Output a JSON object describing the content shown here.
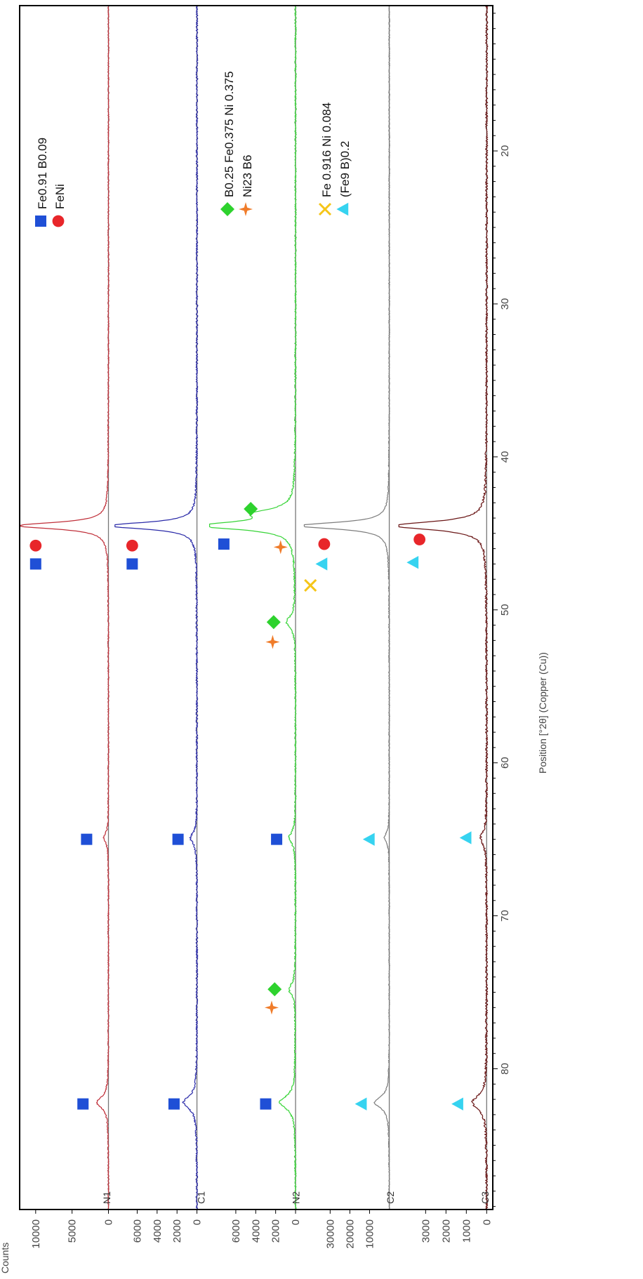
{
  "chart_data": {
    "type": "line",
    "orientation": "rotated-90-clockwise",
    "xlabel": "Position [°2θ] (Copper (Cu))",
    "ylabel": "Counts",
    "xlim": [
      10.5,
      89.2
    ],
    "x_ticks": [
      20,
      30,
      40,
      50,
      60,
      70,
      80
    ],
    "grid": false,
    "panels": [
      {
        "name": "N1",
        "color": "#c0303a",
        "ylim": [
          -800,
          12200
        ],
        "y_ticks": [
          0,
          5000,
          10000
        ],
        "y_tick_labels": [
          "0",
          "5000",
          "10000"
        ],
        "peaks": [
          {
            "x": 44.5,
            "height": 12500,
            "width": 0.26
          },
          {
            "x": 64.9,
            "height": 650,
            "width": 0.4
          },
          {
            "x": 82.2,
            "height": 1600,
            "width": 0.45
          }
        ],
        "noise": 80,
        "markers": [
          {
            "phase": "Fe0.91 B0.09",
            "x": 47.0,
            "y": 10000
          },
          {
            "phase": "FeNi",
            "x": 45.8,
            "y": 10000
          },
          {
            "phase": "Fe0.91 B0.09",
            "x": 65.0,
            "y": 3000
          },
          {
            "phase": "Fe0.91 B0.09",
            "x": 82.3,
            "y": 3500
          }
        ]
      },
      {
        "name": "C1",
        "color": "#2a2aa8",
        "ylim": [
          -1200,
          8300
        ],
        "y_ticks": [
          0,
          2000,
          4000,
          6000
        ],
        "y_tick_labels": [
          "0",
          "2000",
          "4000",
          "6000"
        ],
        "peaks": [
          {
            "x": 44.5,
            "height": 9000,
            "width": 0.26
          },
          {
            "x": 64.9,
            "height": 650,
            "width": 0.45
          },
          {
            "x": 82.2,
            "height": 1350,
            "width": 0.5
          }
        ],
        "noise": 90,
        "markers": [
          {
            "phase": "Fe0.91 B0.09",
            "x": 47.0,
            "y": 6500
          },
          {
            "phase": "FeNi",
            "x": 45.8,
            "y": 6500
          },
          {
            "phase": "Fe0.91 B0.09",
            "x": 65.0,
            "y": 1900
          },
          {
            "phase": "Fe0.91 B0.09",
            "x": 82.3,
            "y": 2300
          }
        ]
      },
      {
        "name": "N2",
        "color": "#37d437",
        "ylim": [
          -800,
          8700
        ],
        "y_ticks": [
          0,
          2000,
          4000,
          6000
        ],
        "y_tick_labels": [
          "0",
          "2000",
          "4000",
          "6000"
        ],
        "peaks": [
          {
            "x": 43.7,
            "height": 3400,
            "width": 0.35
          },
          {
            "x": 44.5,
            "height": 9200,
            "width": 0.3
          },
          {
            "x": 50.8,
            "height": 900,
            "width": 0.45
          },
          {
            "x": 64.9,
            "height": 650,
            "width": 0.45
          },
          {
            "x": 74.8,
            "height": 650,
            "width": 0.45
          },
          {
            "x": 82.2,
            "height": 1600,
            "width": 0.5
          }
        ],
        "noise": 80,
        "markers": [
          {
            "phase": "Fe0.91 B0.09",
            "x": 45.7,
            "y": 7200
          },
          {
            "phase": "B0.25 Fe0.375 Ni 0.375",
            "x": 43.4,
            "y": 4500
          },
          {
            "phase": "Ni23 B6",
            "x": 45.9,
            "y": 1500
          },
          {
            "phase": "B0.25 Fe0.375 Ni 0.375",
            "x": 50.8,
            "y": 2200
          },
          {
            "phase": "Ni23 B6",
            "x": 52.1,
            "y": 2300
          },
          {
            "phase": "Fe0.91 B0.09",
            "x": 65.0,
            "y": 1900
          },
          {
            "phase": "B0.25 Fe0.375 Ni 0.375",
            "x": 74.8,
            "y": 2100
          },
          {
            "phase": "Ni23 B6",
            "x": 76.0,
            "y": 2400
          },
          {
            "phase": "Fe0.91 B0.09",
            "x": 82.3,
            "y": 3000
          }
        ]
      },
      {
        "name": "C2",
        "color": "#7d7d7d",
        "ylim": [
          -4500,
          43500
        ],
        "y_ticks": [
          10000,
          20000,
          30000
        ],
        "y_tick_labels": [
          "10000",
          "20000",
          "30000"
        ],
        "peaks": [
          {
            "x": 44.5,
            "height": 46000,
            "width": 0.26
          },
          {
            "x": 64.9,
            "height": 2500,
            "width": 0.4
          },
          {
            "x": 82.2,
            "height": 7500,
            "width": 0.45
          }
        ],
        "noise": 250,
        "markers": [
          {
            "phase": "FeNi",
            "x": 45.7,
            "y": 33000
          },
          {
            "phase": "(Fe9 B)0.2",
            "x": 47.0,
            "y": 34000
          },
          {
            "phase": "Fe 0.916 Ni 0.084",
            "x": 48.4,
            "y": 40000
          },
          {
            "phase": "(Fe9 B)0.2",
            "x": 65.0,
            "y": 10000
          },
          {
            "phase": "(Fe9 B)0.2",
            "x": 82.3,
            "y": 14000
          }
        ]
      },
      {
        "name": "C3",
        "color": "#6a1616",
        "ylim": [
          -300,
          4350
        ],
        "y_ticks": [
          0,
          1000,
          2000,
          3000
        ],
        "y_tick_labels": [
          "0",
          "1000",
          "2000",
          "3000"
        ],
        "peaks": [
          {
            "x": 44.5,
            "height": 4600,
            "width": 0.32
          },
          {
            "x": 64.9,
            "height": 300,
            "width": 0.5
          },
          {
            "x": 82.2,
            "height": 700,
            "width": 0.55
          }
        ],
        "noise": 55,
        "markers": [
          {
            "phase": "FeNi",
            "x": 45.4,
            "y": 3300
          },
          {
            "phase": "(Fe9 B)0.2",
            "x": 46.9,
            "y": 3600
          },
          {
            "phase": "(Fe9 B)0.2",
            "x": 64.9,
            "y": 1000
          },
          {
            "phase": "(Fe9 B)0.2",
            "x": 82.3,
            "y": 1400
          }
        ]
      }
    ],
    "legends": [
      {
        "items": [
          {
            "label": "Fe0.91 B0.09",
            "symbol": "square",
            "color": "#1f4fd6"
          },
          {
            "label": "FeNi",
            "symbol": "circle",
            "color": "#e8262a"
          }
        ]
      },
      {
        "items": [
          {
            "label": "B0.25 Fe0.375 Ni 0.375",
            "symbol": "diamond",
            "color": "#2ed22e"
          },
          {
            "label": "Ni23 B6",
            "symbol": "star",
            "color": "#f07c2a"
          }
        ]
      },
      {
        "items": [
          {
            "label": "Fe 0.916 Ni 0.084",
            "symbol": "cross",
            "color": "#f5c518"
          },
          {
            "label": "(Fe9 B)0.2",
            "symbol": "triangle",
            "color": "#36d3f0"
          }
        ]
      }
    ],
    "phase_styles": {
      "Fe0.91 B0.09": {
        "symbol": "square",
        "color": "#1f4fd6"
      },
      "FeNi": {
        "symbol": "circle",
        "color": "#e8262a"
      },
      "B0.25 Fe0.375 Ni 0.375": {
        "symbol": "diamond",
        "color": "#2ed22e"
      },
      "Ni23 B6": {
        "symbol": "star",
        "color": "#f07c2a"
      },
      "Fe 0.916 Ni 0.084": {
        "symbol": "cross",
        "color": "#f5c518"
      },
      "(Fe9 B)0.2": {
        "symbol": "triangle",
        "color": "#36d3f0"
      }
    }
  }
}
